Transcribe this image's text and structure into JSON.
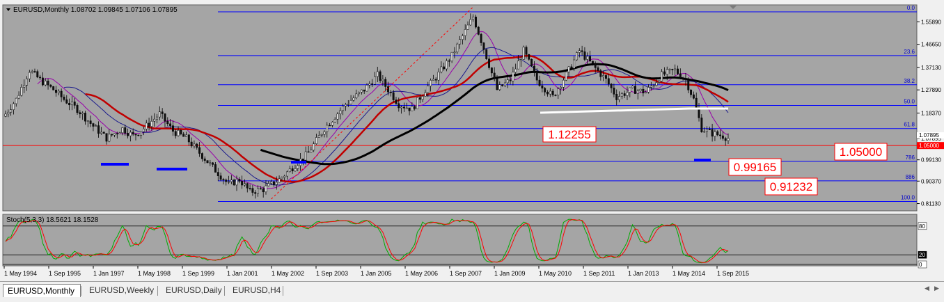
{
  "chart_data": {
    "type": "candlestick",
    "symbol": "EURUSD",
    "timeframe": "Monthly",
    "ohlc_header": "EURUSD,Monthly  1.08702 1.09845 1.07106 1.07895",
    "x_labels": [
      "1 May 1994",
      "1 Sep 1995",
      "1 Jan 1997",
      "1 May 1998",
      "1 Sep 1999",
      "1 Jan 2001",
      "1 May 2002",
      "1 Sep 2003",
      "1 Jan 2005",
      "1 May 2006",
      "1 Sep 2007",
      "1 Jan 2009",
      "1 May 2010",
      "1 Sep 2011",
      "1 Jan 2013",
      "1 May 2014",
      "1 Sep 2015"
    ],
    "y_ticks": [
      "1.55890",
      "1.46650",
      "1.37130",
      "1.27890",
      "1.18370",
      "1.07895",
      "0.99130",
      "0.90370",
      "0.81130"
    ],
    "ylim": [
      0.79,
      1.62
    ],
    "price_samples": [
      [
        0,
        1.18
      ],
      [
        4,
        1.24
      ],
      [
        9,
        1.36
      ],
      [
        13,
        1.32
      ],
      [
        18,
        1.28
      ],
      [
        22,
        1.24
      ],
      [
        27,
        1.2
      ],
      [
        33,
        1.13
      ],
      [
        38,
        1.08
      ],
      [
        44,
        1.12
      ],
      [
        48,
        1.09
      ],
      [
        52,
        1.12
      ],
      [
        58,
        1.18
      ],
      [
        63,
        1.11
      ],
      [
        68,
        1.08
      ],
      [
        73,
        1.02
      ],
      [
        78,
        0.96
      ],
      [
        84,
        0.89
      ],
      [
        88,
        0.91
      ],
      [
        92,
        0.86
      ],
      [
        97,
        0.87
      ],
      [
        103,
        0.91
      ],
      [
        108,
        0.96
      ],
      [
        114,
        1.02
      ],
      [
        120,
        1.12
      ],
      [
        128,
        1.22
      ],
      [
        135,
        1.28
      ],
      [
        140,
        1.34
      ],
      [
        148,
        1.22
      ],
      [
        153,
        1.2
      ],
      [
        158,
        1.28
      ],
      [
        162,
        1.33
      ],
      [
        168,
        1.42
      ],
      [
        173,
        1.52
      ],
      [
        176,
        1.58
      ],
      [
        180,
        1.45
      ],
      [
        185,
        1.28
      ],
      [
        190,
        1.32
      ],
      [
        195,
        1.44
      ],
      [
        200,
        1.32
      ],
      [
        206,
        1.25
      ],
      [
        212,
        1.36
      ],
      [
        216,
        1.44
      ],
      [
        221,
        1.38
      ],
      [
        226,
        1.32
      ],
      [
        230,
        1.25
      ],
      [
        236,
        1.28
      ],
      [
        241,
        1.27
      ],
      [
        247,
        1.34
      ],
      [
        252,
        1.36
      ],
      [
        256,
        1.32
      ],
      [
        259,
        1.24
      ],
      [
        262,
        1.12
      ],
      [
        266,
        1.1
      ],
      [
        270,
        1.09
      ],
      [
        272,
        1.08
      ]
    ],
    "current_price": "1.05000",
    "fibonacci_levels": [
      {
        "label": "0.0",
        "price": 1.6
      },
      {
        "label": "23.6",
        "price": 1.42
      },
      {
        "label": "38.2",
        "price": 1.3
      },
      {
        "label": "50.0",
        "price": 1.215
      },
      {
        "label": "61.8",
        "price": 1.12
      },
      {
        "label": "786",
        "price": 0.985
      },
      {
        "label": "886",
        "price": 0.905
      },
      {
        "label": "100.0",
        "price": 0.82
      }
    ],
    "callouts": [
      "1.12255",
      "1.05000",
      "0.99165",
      "0.91232"
    ],
    "stochastic": {
      "label": "Stoch(5,3,3) 18.5621 18.1528",
      "levels": [
        "80",
        "20",
        "0"
      ]
    }
  },
  "colors": {
    "background": "#a5a5a5",
    "grid_line": "#0000ff",
    "price_line": "#ff0000",
    "candle_bull": "#e8e8e8",
    "candle_bear": "#101010",
    "ma_black": "#000000",
    "ma_red": "#c00000",
    "ma_purple": "#9900aa",
    "ma_navy": "#1a1a8c",
    "stoch_main": "#00aa00",
    "stoch_signal": "#ff0000"
  },
  "tabs": [
    {
      "label": "EURUSD,Monthly",
      "active": true
    },
    {
      "label": "EURUSD,Weekly",
      "active": false
    },
    {
      "label": "EURUSD,Daily",
      "active": false
    },
    {
      "label": "EURUSD,H4",
      "active": false
    }
  ]
}
